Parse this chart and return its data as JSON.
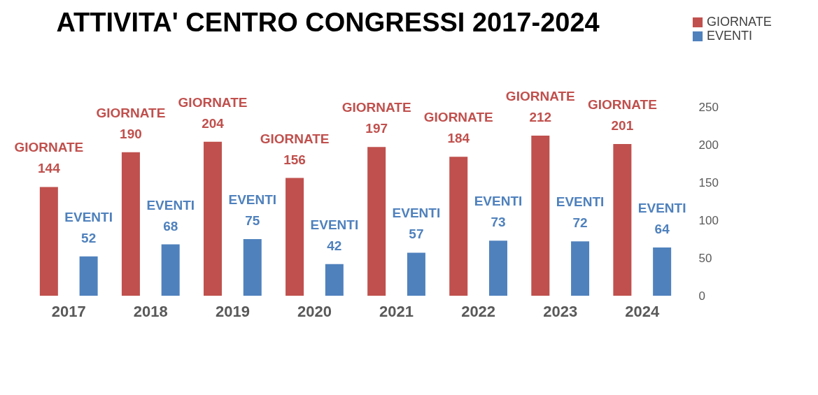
{
  "chart_data": {
    "type": "bar",
    "title": "ATTIVITA' CENTRO CONGRESSI 2017-2024",
    "categories": [
      "2017",
      "2018",
      "2019",
      "2020",
      "2021",
      "2022",
      "2023",
      "2024"
    ],
    "series": [
      {
        "name": "GIORNATE",
        "color": "#c0504d",
        "values": [
          144,
          190,
          204,
          156,
          197,
          184,
          212,
          201
        ]
      },
      {
        "name": "EVENTI",
        "color": "#4f81bd",
        "values": [
          52,
          68,
          75,
          42,
          57,
          73,
          72,
          64
        ]
      }
    ],
    "ylim": [
      0,
      250
    ],
    "yticks": [
      0,
      50,
      100,
      150,
      200,
      250
    ],
    "grid": false,
    "legend": "top right",
    "data_labels": true
  }
}
